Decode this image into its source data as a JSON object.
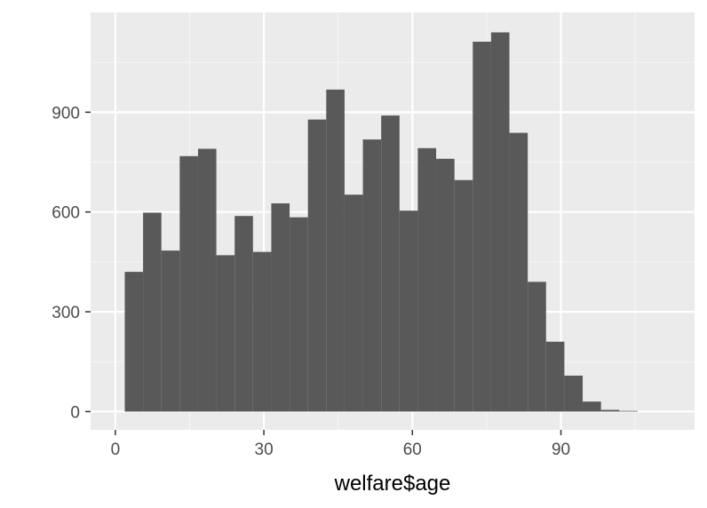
{
  "chart_data": {
    "type": "bar",
    "xlabel": "welfare$age",
    "ylabel": "",
    "xlim": [
      -5,
      117
    ],
    "ylim": [
      -55,
      1200
    ],
    "x_ticks": [
      0,
      30,
      60,
      90
    ],
    "y_ticks": [
      0,
      300,
      600,
      900
    ],
    "x_tick_labels": [
      "0",
      "30",
      "60",
      "90"
    ],
    "y_tick_labels": [
      "0",
      "300",
      "600",
      "900"
    ],
    "grid": true,
    "bin_edges": [
      1.9,
      5.6,
      9.3,
      13.0,
      16.7,
      20.4,
      24.1,
      27.8,
      31.5,
      35.2,
      38.9,
      42.6,
      46.3,
      50.0,
      53.7,
      57.4,
      61.1,
      64.8,
      68.5,
      72.2,
      75.9,
      79.6,
      83.3,
      87.0,
      90.7,
      94.4,
      98.1,
      101.8,
      105.5
    ],
    "counts": [
      420,
      598,
      484,
      768,
      790,
      470,
      588,
      480,
      626,
      584,
      878,
      968,
      652,
      818,
      890,
      604,
      792,
      760,
      696,
      1112,
      1140,
      838,
      390,
      210,
      108,
      30,
      5,
      2
    ],
    "colors": {
      "bar": "#595959",
      "panel": "#ebebeb",
      "grid_major": "#ffffff",
      "grid_minor": "#f5f5f5",
      "tick": "#333333"
    }
  }
}
